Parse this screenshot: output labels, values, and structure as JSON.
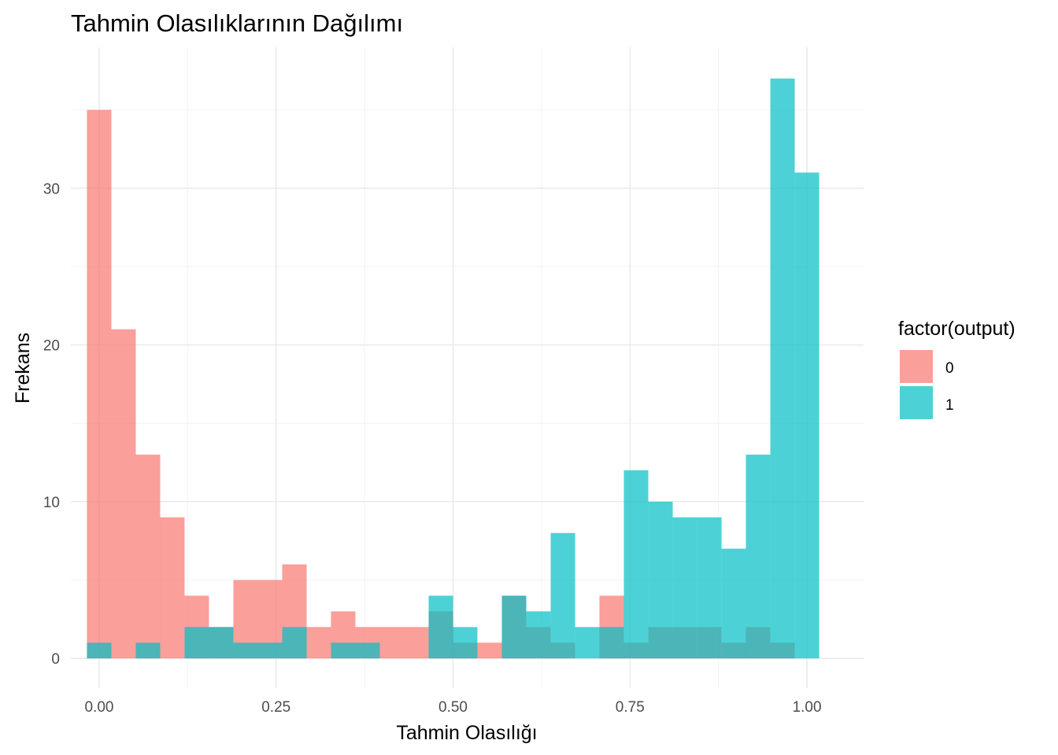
{
  "chart_data": {
    "type": "bar",
    "subtype": "overlapping-histogram",
    "title": "Tahmin Olasılıklarının Dağılımı",
    "xlabel": "Tahmin Olasılığı",
    "ylabel": "Frekans",
    "xlim": [
      -0.04,
      1.08
    ],
    "ylim": [
      -1.9,
      39.0
    ],
    "x_ticks": [
      0.0,
      0.25,
      0.5,
      0.75,
      1.0
    ],
    "x_tick_labels": [
      "0.00",
      "0.25",
      "0.50",
      "0.75",
      "1.00"
    ],
    "y_ticks": [
      0,
      10,
      20,
      30
    ],
    "y_tick_labels": [
      "0",
      "10",
      "20",
      "30"
    ],
    "grid": true,
    "bin_centers": [
      0.0,
      0.0345,
      0.069,
      0.1034,
      0.1379,
      0.1724,
      0.2069,
      0.2414,
      0.2759,
      0.3103,
      0.3448,
      0.3793,
      0.4138,
      0.4483,
      0.4828,
      0.5172,
      0.5517,
      0.5862,
      0.6207,
      0.6552,
      0.6897,
      0.7241,
      0.7586,
      0.7931,
      0.8276,
      0.8621,
      0.8966,
      0.931,
      0.9655,
      1.0
    ],
    "bin_width": 0.0345,
    "legend": {
      "title": "factor(output)",
      "position": "right",
      "items": [
        {
          "label": "0",
          "color": "#F8766D"
        },
        {
          "label": "1",
          "color": "#00BFC4"
        }
      ]
    },
    "series": [
      {
        "name": "0",
        "color": "#F8766D",
        "values": [
          35,
          21,
          13,
          9,
          4,
          2,
          5,
          5,
          6,
          2,
          3,
          2,
          2,
          2,
          3,
          1,
          1,
          4,
          2,
          1,
          0,
          4,
          1,
          2,
          2,
          2,
          1,
          2,
          1,
          0
        ]
      },
      {
        "name": "1",
        "color": "#00BFC4",
        "values": [
          1,
          0,
          1,
          0,
          2,
          2,
          1,
          1,
          2,
          0,
          1,
          1,
          0,
          0,
          4,
          2,
          0,
          4,
          3,
          8,
          2,
          2,
          12,
          10,
          9,
          9,
          7,
          13,
          37,
          31
        ]
      }
    ],
    "bar_opacity": 0.7
  }
}
